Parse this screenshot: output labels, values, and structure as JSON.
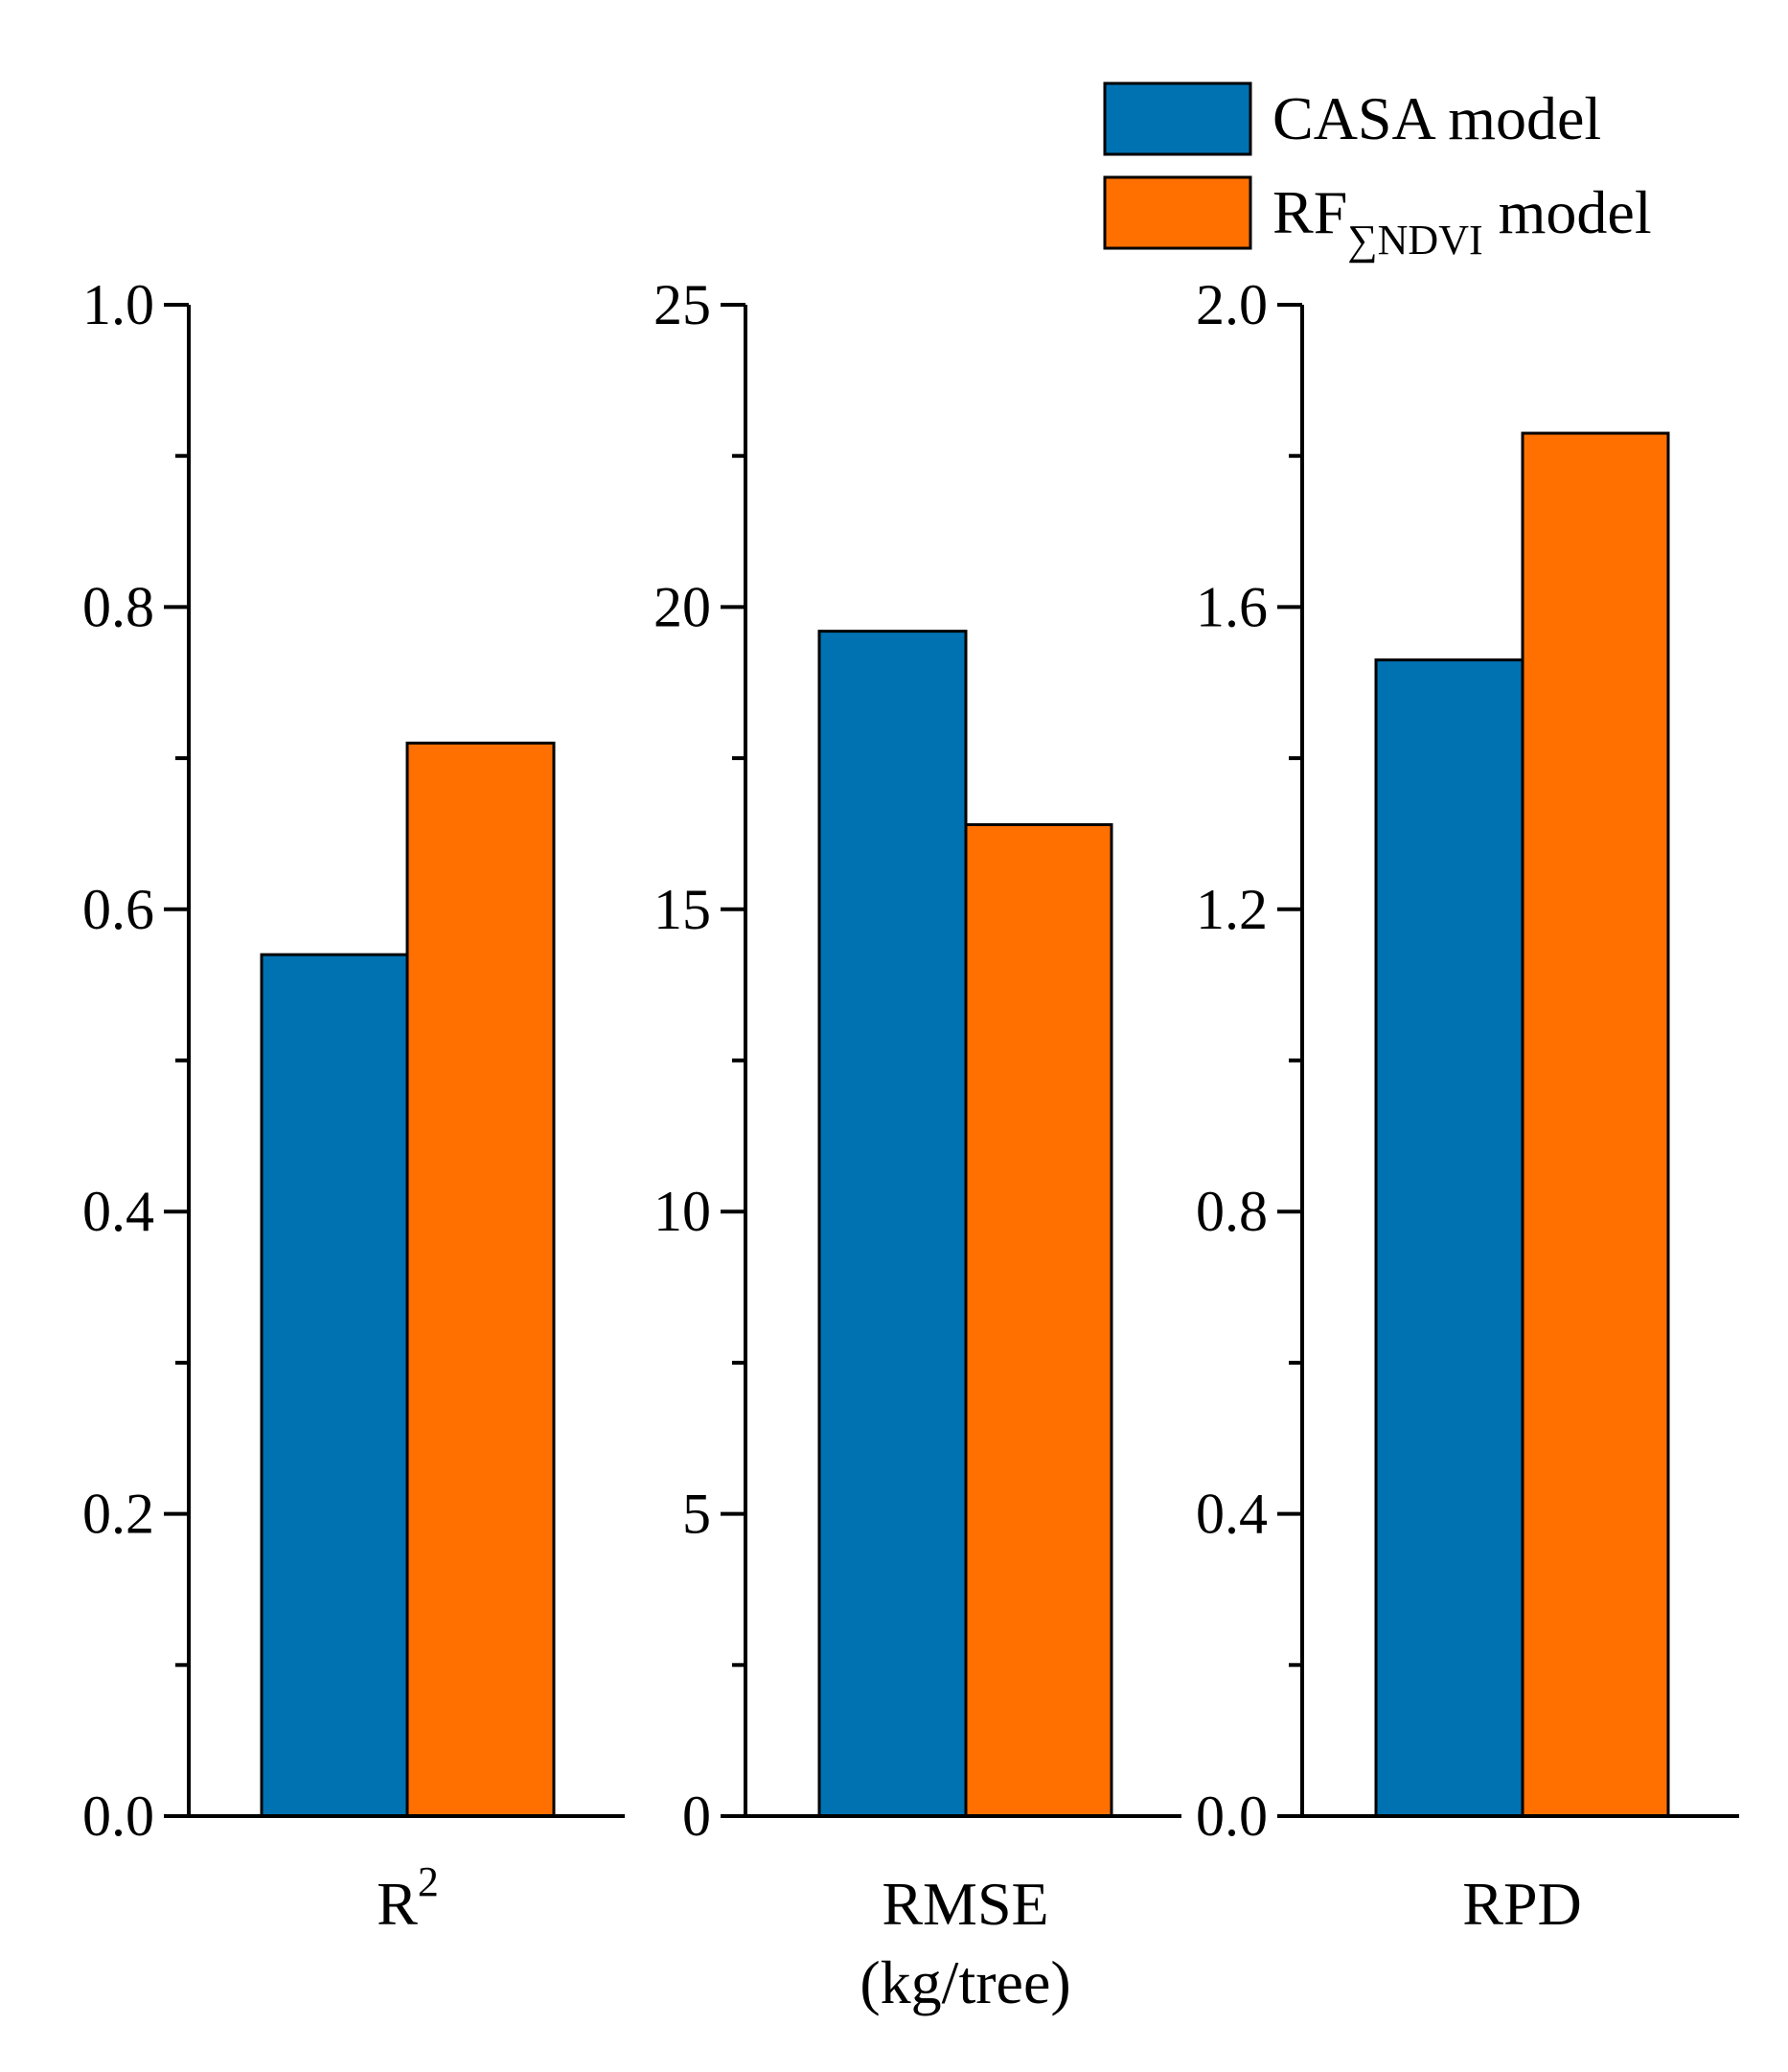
{
  "chart_data": {
    "type": "bar",
    "legend": {
      "placement": "top-right",
      "entries": [
        {
          "base": "CASA model",
          "subscript": "",
          "suffix": "",
          "color": "#0072B2"
        },
        {
          "base": "RF",
          "subscript": "∑NDVI",
          "suffix": " model",
          "color": "#FF7000"
        }
      ]
    },
    "panels": [
      {
        "category": {
          "text": "R",
          "superscript": "2",
          "line2": ""
        },
        "ylim": [
          0,
          1.0
        ],
        "yticks": [
          "0.0",
          "0.2",
          "0.4",
          "0.6",
          "0.8",
          "1.0"
        ],
        "minor_ticks": true,
        "values": [
          0.57,
          0.71
        ]
      },
      {
        "category": {
          "text": "RMSE",
          "superscript": "",
          "line2": "(kg/tree)"
        },
        "ylim": [
          0,
          25
        ],
        "yticks": [
          "0",
          "5",
          "10",
          "15",
          "20",
          "25"
        ],
        "minor_ticks": true,
        "values": [
          19.6,
          16.4
        ]
      },
      {
        "category": {
          "text": "RPD",
          "superscript": "",
          "line2": ""
        },
        "ylim": [
          0,
          2.0
        ],
        "yticks": [
          "0.0",
          "0.4",
          "0.8",
          "1.2",
          "1.6",
          "2.0"
        ],
        "minor_ticks": true,
        "values": [
          1.53,
          1.83
        ]
      }
    ],
    "series_colors": [
      "#0072B2",
      "#FF7000"
    ]
  }
}
